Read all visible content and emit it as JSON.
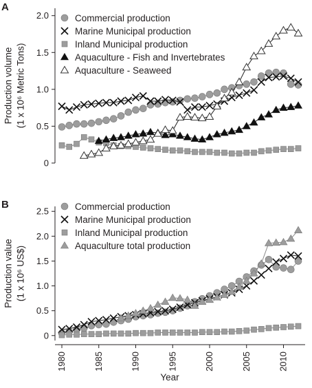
{
  "chart_data": [
    {
      "type": "line",
      "panel_label": "A",
      "ylabel": "Production volume",
      "ylabel_units": "(1 x 10⁶ Metric Tons)",
      "xlabel": "",
      "xlim": [
        1980,
        2012
      ],
      "ylim": [
        0,
        2.1
      ],
      "yticks": [
        "0",
        "0.5",
        "1.0",
        "1.5",
        "2.0"
      ],
      "ytick_values": [
        0,
        0.5,
        1.0,
        1.5,
        2.0
      ],
      "xticks": [
        1980,
        1985,
        1990,
        1995,
        2000,
        2005,
        2010
      ],
      "legend_position": "top-left",
      "grid": false,
      "series": [
        {
          "name": "Commercial production",
          "marker": "circle",
          "color": "#9d9d9d",
          "x": [
            1980,
            1981,
            1982,
            1983,
            1984,
            1985,
            1986,
            1987,
            1988,
            1989,
            1990,
            1991,
            1992,
            1993,
            1994,
            1995,
            1996,
            1997,
            1998,
            1999,
            2000,
            2001,
            2002,
            2003,
            2004,
            2005,
            2006,
            2007,
            2008,
            2009,
            2010,
            2011,
            2012
          ],
          "y": [
            0.49,
            0.51,
            0.53,
            0.53,
            0.54,
            0.56,
            0.58,
            0.6,
            0.64,
            0.69,
            0.72,
            0.74,
            0.79,
            0.8,
            0.82,
            0.83,
            0.85,
            0.87,
            0.88,
            0.9,
            0.93,
            0.95,
            1.0,
            1.02,
            1.05,
            1.07,
            1.1,
            1.18,
            1.22,
            1.23,
            1.22,
            1.07,
            1.06
          ]
        },
        {
          "name": "Marine Municipal production",
          "marker": "x",
          "color": "#111111",
          "x": [
            1980,
            1981,
            1982,
            1983,
            1984,
            1985,
            1986,
            1987,
            1988,
            1989,
            1990,
            1991,
            1992,
            1993,
            1994,
            1995,
            1996,
            1997,
            1998,
            1999,
            2000,
            2001,
            2002,
            2003,
            2004,
            2005,
            2006,
            2007,
            2008,
            2009,
            2010,
            2011,
            2012
          ],
          "y": [
            0.77,
            0.72,
            0.76,
            0.79,
            0.8,
            0.81,
            0.82,
            0.82,
            0.84,
            0.85,
            0.89,
            0.91,
            0.84,
            0.84,
            0.86,
            0.85,
            0.83,
            0.72,
            0.76,
            0.76,
            0.78,
            0.8,
            0.84,
            0.89,
            0.92,
            0.95,
            0.99,
            1.1,
            1.16,
            1.17,
            1.18,
            1.15,
            1.1
          ]
        },
        {
          "name": "Inland Municipal production",
          "marker": "square",
          "color": "#9d9d9d",
          "x": [
            1980,
            1981,
            1982,
            1983,
            1984,
            1985,
            1986,
            1987,
            1988,
            1989,
            1990,
            1991,
            1992,
            1993,
            1994,
            1995,
            1996,
            1997,
            1998,
            1999,
            2000,
            2001,
            2002,
            2003,
            2004,
            2005,
            2006,
            2007,
            2008,
            2009,
            2010,
            2011,
            2012
          ],
          "y": [
            0.24,
            0.22,
            0.26,
            0.35,
            0.32,
            0.28,
            0.27,
            0.24,
            0.23,
            0.23,
            0.22,
            0.21,
            0.2,
            0.19,
            0.18,
            0.17,
            0.17,
            0.16,
            0.15,
            0.15,
            0.15,
            0.14,
            0.14,
            0.13,
            0.13,
            0.14,
            0.14,
            0.16,
            0.17,
            0.18,
            0.19,
            0.19,
            0.2
          ]
        },
        {
          "name": "Aquaculture - Fish and Invertebrates",
          "marker": "triangle",
          "color": "#111111",
          "x": [
            1985,
            1986,
            1987,
            1988,
            1989,
            1990,
            1991,
            1992,
            1993,
            1994,
            1995,
            1996,
            1997,
            1998,
            1999,
            2000,
            2001,
            2002,
            2003,
            2004,
            2005,
            2006,
            2007,
            2008,
            2009,
            2010,
            2011,
            2012
          ],
          "y": [
            0.3,
            0.32,
            0.34,
            0.35,
            0.37,
            0.39,
            0.4,
            0.42,
            0.41,
            0.38,
            0.39,
            0.37,
            0.35,
            0.33,
            0.32,
            0.35,
            0.39,
            0.41,
            0.43,
            0.45,
            0.5,
            0.55,
            0.62,
            0.66,
            0.72,
            0.75,
            0.76,
            0.78
          ]
        },
        {
          "name": "Aquaculture - Seaweed",
          "marker": "triangle-open",
          "color": "#111111",
          "x": [
            1983,
            1984,
            1985,
            1986,
            1987,
            1988,
            1989,
            1990,
            1991,
            1992,
            1993,
            1994,
            1995,
            1996,
            1997,
            1998,
            1999,
            2000,
            2001,
            2002,
            2003,
            2004,
            2005,
            2006,
            2007,
            2008,
            2009,
            2010,
            2011,
            2012
          ],
          "y": [
            0.1,
            0.12,
            0.14,
            0.2,
            0.23,
            0.24,
            0.26,
            0.28,
            0.3,
            0.32,
            0.4,
            0.45,
            0.44,
            0.62,
            0.63,
            0.62,
            0.61,
            0.63,
            0.77,
            0.88,
            0.96,
            1.1,
            1.3,
            1.45,
            1.52,
            1.62,
            1.72,
            1.8,
            1.84,
            1.76
          ]
        }
      ]
    },
    {
      "type": "line",
      "panel_label": "B",
      "ylabel": "Production value",
      "ylabel_units": "(1 x 10⁶ US$)",
      "xlabel": "Year",
      "xlim": [
        1980,
        2012
      ],
      "ylim": [
        -0.1,
        2.6
      ],
      "yticks": [
        "0",
        "0.5",
        "1.0",
        "1.5",
        "2.0",
        "2.5"
      ],
      "ytick_values": [
        0,
        0.5,
        1.0,
        1.5,
        2.0,
        2.5
      ],
      "xticks": [
        1980,
        1985,
        1990,
        1995,
        2000,
        2005,
        2010
      ],
      "legend_position": "top-left",
      "grid": false,
      "series": [
        {
          "name": "Commercial production",
          "marker": "circle",
          "color": "#9d9d9d",
          "x": [
            1980,
            1981,
            1982,
            1983,
            1984,
            1985,
            1986,
            1987,
            1988,
            1989,
            1990,
            1991,
            1992,
            1993,
            1994,
            1995,
            1996,
            1997,
            1998,
            1999,
            2000,
            2001,
            2002,
            2003,
            2004,
            2005,
            2006,
            2007,
            2008,
            2009,
            2010,
            2011,
            2012
          ],
          "y": [
            0.05,
            0.08,
            0.12,
            0.15,
            0.2,
            0.22,
            0.23,
            0.27,
            0.3,
            0.33,
            0.38,
            0.4,
            0.42,
            0.45,
            0.47,
            0.5,
            0.55,
            0.6,
            0.68,
            0.74,
            0.8,
            0.86,
            0.93,
            1.0,
            1.09,
            1.18,
            1.3,
            1.42,
            1.53,
            1.38,
            1.36,
            1.33,
            1.5
          ]
        },
        {
          "name": "Marine Municipal production",
          "marker": "x",
          "color": "#111111",
          "x": [
            1980,
            1981,
            1982,
            1983,
            1984,
            1985,
            1986,
            1987,
            1988,
            1989,
            1990,
            1991,
            1992,
            1993,
            1994,
            1995,
            1996,
            1997,
            1998,
            1999,
            2000,
            2001,
            2002,
            2003,
            2004,
            2005,
            2006,
            2007,
            2008,
            2009,
            2010,
            2011,
            2012
          ],
          "y": [
            0.12,
            0.14,
            0.17,
            0.22,
            0.28,
            0.3,
            0.32,
            0.35,
            0.38,
            0.4,
            0.42,
            0.44,
            0.46,
            0.48,
            0.5,
            0.53,
            0.57,
            0.62,
            0.66,
            0.7,
            0.74,
            0.78,
            0.82,
            0.86,
            0.93,
            1.0,
            1.1,
            1.22,
            1.35,
            1.48,
            1.55,
            1.62,
            1.6
          ]
        },
        {
          "name": "Inland Municipal production",
          "marker": "square",
          "color": "#9d9d9d",
          "x": [
            1980,
            1981,
            1982,
            1983,
            1984,
            1985,
            1986,
            1987,
            1988,
            1989,
            1990,
            1991,
            1992,
            1993,
            1994,
            1995,
            1996,
            1997,
            1998,
            1999,
            2000,
            2001,
            2002,
            2003,
            2004,
            2005,
            2006,
            2007,
            2008,
            2009,
            2010,
            2011,
            2012
          ],
          "y": [
            0.01,
            0.02,
            0.02,
            0.03,
            0.03,
            0.03,
            0.04,
            0.04,
            0.04,
            0.04,
            0.05,
            0.05,
            0.05,
            0.06,
            0.06,
            0.06,
            0.06,
            0.06,
            0.06,
            0.07,
            0.07,
            0.07,
            0.08,
            0.08,
            0.09,
            0.1,
            0.12,
            0.13,
            0.15,
            0.16,
            0.17,
            0.18,
            0.19
          ]
        },
        {
          "name": "Aquaculture total production",
          "marker": "triangle",
          "color": "#9d9d9d",
          "x": [
            1988,
            1989,
            1990,
            1991,
            1992,
            1993,
            1994,
            1995,
            1996,
            1997,
            1998,
            1999,
            2000,
            2001,
            2002,
            2003,
            2004,
            2005,
            2006,
            2007,
            2008,
            2009,
            2010,
            2011,
            2012
          ],
          "y": [
            0.35,
            0.4,
            0.45,
            0.5,
            0.55,
            0.62,
            0.68,
            0.76,
            0.75,
            0.72,
            0.6,
            0.68,
            0.72,
            0.77,
            0.82,
            0.88,
            0.98,
            1.1,
            1.25,
            1.45,
            1.86,
            1.87,
            1.88,
            1.95,
            2.12
          ]
        }
      ]
    }
  ]
}
